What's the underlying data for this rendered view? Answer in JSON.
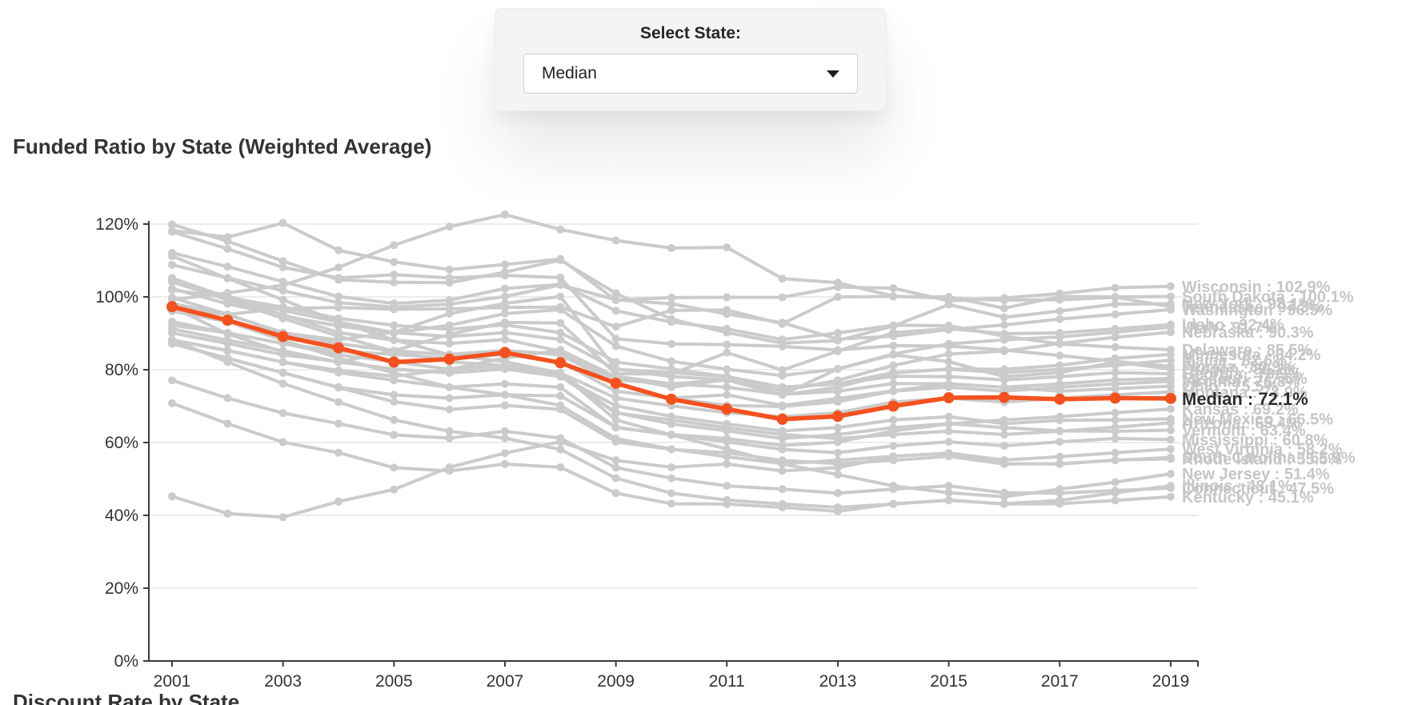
{
  "select_panel": {
    "label": "Select State:",
    "value": "Median"
  },
  "title": "Funded Ratio by State (Weighted Average)",
  "next_section_title": "Discount Rate by State",
  "chart_data": {
    "type": "line",
    "title": "Funded Ratio by State (Weighted Average)",
    "xlabel": "",
    "ylabel": "",
    "ylim": [
      0,
      120
    ],
    "grid": true,
    "legend_position": "right-end-labels",
    "x": [
      2001,
      2002,
      2003,
      2004,
      2005,
      2006,
      2007,
      2008,
      2009,
      2010,
      2011,
      2012,
      2013,
      2014,
      2015,
      2016,
      2017,
      2018,
      2019
    ],
    "x_tick_labels": [
      "2001",
      "2003",
      "2005",
      "2007",
      "2009",
      "2011",
      "2013",
      "2015",
      "2017",
      "2019"
    ],
    "y_tick_values": [
      0,
      20,
      40,
      60,
      80,
      100,
      120
    ],
    "y_tick_labels": [
      "0%",
      "20%",
      "40%",
      "60%",
      "80%",
      "100%",
      "120%"
    ],
    "colors": {
      "highlight": "#f4511e",
      "muted": "#cbcbcb",
      "muted_label": "#c6c6c6",
      "axis": "#3c3c3c",
      "grid": "#e0e0e0",
      "highlight_label": "#2d2d2d"
    },
    "highlight_series": {
      "name": "Median",
      "end_label": "Median : 72.1%",
      "values": [
        97.3,
        93.6,
        89.1,
        86.0,
        82.1,
        82.9,
        84.7,
        81.9,
        76.3,
        71.9,
        69.2,
        66.4,
        67.2,
        70.0,
        72.3,
        72.4,
        71.9,
        72.2,
        72.1
      ]
    },
    "series": [
      {
        "name": "Wisconsin",
        "end_label": "Wisconsin : 102.9%",
        "values": [
          118.2,
          116.4,
          120.3,
          112.8,
          109.6,
          107.5,
          108.9,
          110.4,
          99.1,
          99.8,
          99.9,
          99.9,
          102.7,
          102.4,
          98.9,
          99.7,
          100.9,
          102.5,
          102.9
        ]
      },
      {
        "name": "South Dakota",
        "end_label": "South Dakota : 100.1%",
        "values": [
          96.4,
          95.2,
          96.8,
          97.1,
          96.6,
          96.7,
          97.1,
          97.2,
          91.8,
          96.3,
          96.4,
          92.6,
          100.0,
          100.1,
          100.0,
          96.9,
          100.1,
          100.0,
          100.1
        ]
      },
      {
        "name": "New York",
        "end_label": "New York : 98.1%",
        "values": [
          119.9,
          115.3,
          109.8,
          104.7,
          104.0,
          103.9,
          106.8,
          110.1,
          101.0,
          93.9,
          90.2,
          87.3,
          88.0,
          92.0,
          97.9,
          94.4,
          96.1,
          98.0,
          98.1
        ]
      },
      {
        "name": "Tennessee",
        "end_label": "Tennessee : 97.3%",
        "values": [
          99.2,
          101.1,
          103.2,
          108.1,
          114.2,
          119.3,
          122.6,
          118.5,
          115.5,
          113.4,
          113.6,
          105.0,
          103.9,
          100.2,
          99.6,
          99.1,
          99.2,
          99.9,
          97.3
        ]
      },
      {
        "name": "Washington",
        "end_label": "Washington : 96.5%",
        "values": [
          108.8,
          105.2,
          101.7,
          98.4,
          97.2,
          98.0,
          100.1,
          103.3,
          99.2,
          98.1,
          95.3,
          92.9,
          88.4,
          89.2,
          91.0,
          92.3,
          93.9,
          95.2,
          96.5
        ]
      },
      {
        "name": "Idaho",
        "end_label": "Idaho : 92.4%",
        "values": [
          97.3,
          89.8,
          84.9,
          82.1,
          85.2,
          89.7,
          93.0,
          92.8,
          78.9,
          78.8,
          84.7,
          79.9,
          85.1,
          90.2,
          91.3,
          89.9,
          90.1,
          91.2,
          92.4
        ]
      },
      {
        "name": "Utah",
        "end_label": "Utah : 91.7%",
        "values": [
          102.3,
          98.1,
          94.8,
          92.0,
          90.1,
          92.2,
          95.4,
          96.5,
          86.5,
          82.3,
          80.1,
          78.4,
          80.2,
          84.3,
          87.1,
          88.2,
          89.0,
          90.3,
          91.7
        ]
      },
      {
        "name": "Nebraska",
        "end_label": "Nebraska : 90.3%",
        "values": [
          88.2,
          85.3,
          82.1,
          79.8,
          78.2,
          80.1,
          83.2,
          85.4,
          78.1,
          75.2,
          77.3,
          74.2,
          77.1,
          81.2,
          84.3,
          85.1,
          87.2,
          88.9,
          90.3
        ]
      },
      {
        "name": "Delaware",
        "end_label": "Delaware : 85.5%",
        "values": [
          112.1,
          108.3,
          104.2,
          100.1,
          98.2,
          99.1,
          102.3,
          103.4,
          96.2,
          93.1,
          91.2,
          88.3,
          90.1,
          92.2,
          92.1,
          89.2,
          87.1,
          86.2,
          85.5
        ]
      },
      {
        "name": "Minnesota",
        "end_label": "Minnesota : 84.2%",
        "values": [
          105.2,
          99.8,
          95.1,
          90.2,
          88.1,
          87.2,
          88.3,
          85.1,
          77.2,
          76.1,
          77.2,
          73.1,
          75.2,
          79.1,
          80.2,
          80.1,
          81.2,
          83.1,
          84.2
        ]
      },
      {
        "name": "Maine",
        "end_label": "Maine : 82.6%",
        "values": [
          104.1,
          100.2,
          96.3,
          93.1,
          90.2,
          89.1,
          90.2,
          88.3,
          80.1,
          79.2,
          78.1,
          75.2,
          76.1,
          79.2,
          80.1,
          79.2,
          80.1,
          81.2,
          82.6
        ]
      },
      {
        "name": "Florida",
        "end_label": "Florida : 80.9%",
        "values": [
          117.9,
          113.2,
          108.1,
          105.2,
          106.1,
          105.2,
          105.9,
          105.3,
          88.5,
          87.1,
          86.9,
          86.4,
          85.4,
          86.6,
          86.5,
          85.4,
          83.9,
          82.3,
          80.9
        ]
      },
      {
        "name": "Oregon",
        "end_label": "Oregon : 80.2%",
        "values": [
          99.8,
          95.2,
          90.1,
          88.2,
          90.3,
          95.4,
          98.2,
          100.1,
          80.2,
          78.1,
          77.2,
          73.1,
          80.2,
          84.1,
          82.2,
          78.1,
          79.2,
          82.1,
          80.2
        ]
      },
      {
        "name": "Georgia",
        "end_label": "Georgia : 78.9%",
        "values": [
          101.9,
          99.8,
          97.2,
          94.1,
          92.2,
          91.1,
          92.3,
          90.2,
          82.1,
          80.2,
          78.1,
          75.2,
          76.1,
          78.2,
          78.1,
          77.2,
          78.1,
          79.2,
          78.9
        ]
      },
      {
        "name": "Missouri",
        "end_label": "Missouri : 77.6%",
        "values": [
          98.2,
          95.1,
          90.2,
          87.1,
          85.2,
          84.1,
          85.2,
          84.3,
          78.2,
          76.1,
          75.2,
          73.2,
          74.1,
          76.2,
          76.1,
          75.2,
          76.1,
          77.2,
          77.6
        ]
      },
      {
        "name": "Virginia",
        "end_label": "Virginia : 76.8%",
        "values": [
          96.1,
          93.2,
          90.1,
          87.2,
          85.1,
          84.2,
          85.3,
          84.1,
          76.2,
          72.1,
          70.2,
          69.9,
          71.2,
          74.1,
          75.2,
          74.1,
          75.2,
          76.1,
          76.8
        ]
      },
      {
        "name": "Ohio",
        "end_label": "Ohio : 75.5%",
        "values": [
          92.2,
          90.1,
          87.2,
          85.1,
          84.2,
          83.1,
          84.2,
          82.1,
          74.1,
          72.2,
          73.1,
          70.2,
          72.1,
          74.2,
          76.1,
          75.2,
          74.1,
          74.8,
          75.5
        ]
      },
      {
        "name": "Montana",
        "end_label": "Montana : 73.9%",
        "values": [
          90.1,
          87.2,
          84.1,
          82.2,
          80.1,
          79.2,
          80.3,
          79.1,
          72.2,
          70.1,
          68.2,
          67.1,
          68.2,
          71.1,
          72.2,
          71.1,
          72.2,
          73.1,
          73.9
        ]
      },
      {
        "name": "Kansas",
        "end_label": "Kansas : 69.2%",
        "values": [
          88.1,
          85.2,
          82.1,
          79.2,
          77.1,
          75.2,
          76.1,
          75.2,
          64.1,
          62.2,
          61.1,
          59.2,
          60.1,
          63.2,
          65.1,
          66.2,
          67.1,
          68.2,
          69.2
        ]
      },
      {
        "name": "New Mexico",
        "end_label": "New Mexico : 66.5%",
        "values": [
          91.2,
          88.1,
          85.2,
          82.1,
          80.2,
          79.1,
          80.2,
          78.1,
          70.1,
          67.2,
          65.1,
          63.2,
          64.1,
          66.2,
          67.1,
          65.2,
          66.1,
          66.2,
          66.5
        ]
      },
      {
        "name": "Arizona",
        "end_label": "Arizona : 65.4%",
        "values": [
          104.1,
          99.2,
          94.1,
          89.2,
          85.1,
          82.2,
          81.1,
          78.2,
          68.1,
          66.2,
          64.1,
          62.2,
          61.1,
          62.2,
          63.1,
          62.2,
          63.1,
          64.2,
          65.4
        ]
      },
      {
        "name": "Vermont",
        "end_label": "Vermont : 63.4%",
        "values": [
          93.2,
          90.1,
          87.2,
          84.1,
          82.2,
          80.1,
          81.2,
          79.1,
          68.2,
          65.1,
          63.2,
          61.1,
          62.2,
          64.1,
          65.2,
          64.1,
          63.2,
          63.1,
          63.4
        ]
      },
      {
        "name": "Mississippi",
        "end_label": "Mississippi : 60.8%",
        "values": [
          87.1,
          83.2,
          79.1,
          75.2,
          73.1,
          72.2,
          73.1,
          72.8,
          64.2,
          62.1,
          60.2,
          58.1,
          57.2,
          59.1,
          60.2,
          59.1,
          60.2,
          61.1,
          60.8
        ]
      },
      {
        "name": "West Virginia",
        "end_label": "West Virginia : 58.2%",
        "values": [
          45.2,
          40.5,
          39.5,
          43.8,
          47.1,
          53.2,
          57.1,
          60.2,
          55.1,
          53.2,
          54.1,
          52.2,
          53.1,
          56.2,
          57.1,
          55.2,
          56.1,
          57.2,
          58.2
        ]
      },
      {
        "name": "South Carolina",
        "end_label": "South Carolina : 55.9%",
        "values": [
          87.2,
          83.1,
          79.2,
          75.1,
          71.2,
          69.1,
          70.2,
          69.1,
          60.2,
          58.1,
          57.2,
          55.1,
          54.2,
          55.1,
          56.2,
          54.1,
          54.2,
          55.1,
          55.9
        ]
      },
      {
        "name": "Rhode Island",
        "end_label": "Rhode Island : 55.5%",
        "values": [
          98.1,
          93.2,
          88.1,
          83.2,
          79.1,
          75.2,
          73.1,
          70.2,
          61.1,
          58.2,
          56.1,
          54.2,
          55.1,
          56.2,
          57.1,
          54.2,
          54.1,
          55.2,
          55.5
        ]
      },
      {
        "name": "New Jersey",
        "end_label": "New Jersey : 51.4%",
        "values": [
          111.2,
          105.1,
          99.2,
          93.1,
          88.2,
          84.1,
          82.2,
          79.1,
          66.2,
          62.1,
          58.2,
          54.1,
          51.2,
          48.1,
          46.2,
          45.1,
          47.2,
          49.1,
          51.4
        ]
      },
      {
        "name": "Illinois",
        "end_label": "Illinois : 48.1%",
        "values": [
          70.8,
          65.2,
          60.1,
          57.2,
          53.1,
          52.2,
          54.1,
          53.2,
          46.1,
          43.2,
          43.1,
          42.2,
          41.1,
          43.2,
          44.1,
          43.2,
          44.1,
          46.2,
          48.1
        ]
      },
      {
        "name": "Connecticut",
        "end_label": "Connecticut : 47.5%",
        "values": [
          77.1,
          72.2,
          68.1,
          65.2,
          62.1,
          61.2,
          63.1,
          61.2,
          53.1,
          50.2,
          48.1,
          47.2,
          46.1,
          47.2,
          48.1,
          46.2,
          46.1,
          46.8,
          47.5
        ]
      },
      {
        "name": "Kentucky",
        "end_label": "Kentucky : 45.1%",
        "values": [
          88.2,
          82.1,
          76.2,
          71.1,
          66.2,
          63.1,
          61.2,
          58.1,
          50.2,
          46.1,
          44.2,
          43.1,
          42.2,
          43.1,
          44.2,
          43.1,
          43.2,
          44.1,
          45.1
        ]
      }
    ]
  }
}
